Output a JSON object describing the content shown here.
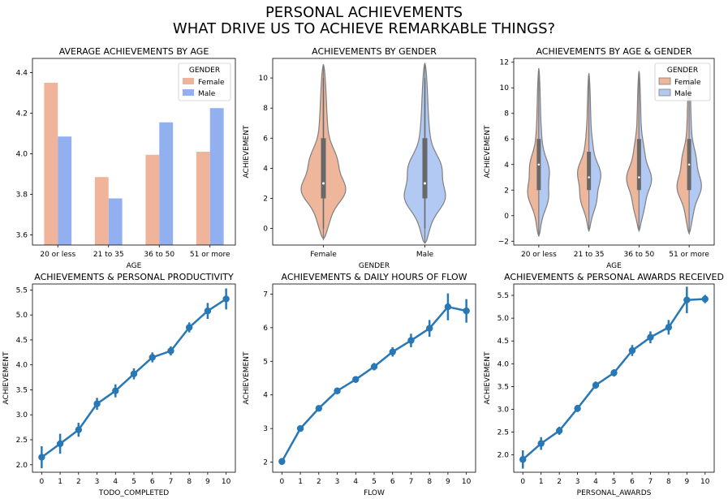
{
  "figure": {
    "title_line1": "PERSONAL ACHIEVEMENTS",
    "title_line2": "WHAT DRIVE US TO ACHIEVE REMARKABLE THINGS?"
  },
  "colors": {
    "female": "#f0b49a",
    "male": "#92b0f0",
    "female_violin": "#eeb79c",
    "male_violin": "#b2c9f4",
    "line": "#2878b5",
    "violin_edge": "#7f7f7f",
    "box": "#686868"
  },
  "chart_data": [
    {
      "type": "bar",
      "title": "AVERAGE ACHIEVEMENTS BY AGE",
      "xlabel": "AGE",
      "ylabel": "",
      "categories": [
        "20 or less",
        "21 to 35",
        "36 to 50",
        "51 or more"
      ],
      "series": [
        {
          "name": "Female",
          "values": [
            4.35,
            3.885,
            3.995,
            4.01
          ]
        },
        {
          "name": "Male",
          "values": [
            4.085,
            3.78,
            4.155,
            4.225
          ]
        }
      ],
      "ylim": [
        3.55,
        4.47
      ],
      "yticks": [
        3.6,
        3.8,
        4.0,
        4.2,
        4.4
      ],
      "ytick_labels": [
        "3.6",
        "3.8",
        "4.0",
        "4.2",
        "4.4"
      ],
      "legend": {
        "title": "GENDER",
        "placement": "top-right"
      }
    },
    {
      "type": "violin",
      "title": "ACHIEVEMENTS BY GENDER",
      "xlabel": "GENDER",
      "ylabel": "ACHIEVEMENT",
      "categories": [
        "Female",
        "Male"
      ],
      "ylim": [
        -1.1,
        11.3
      ],
      "yticks": [
        0,
        2,
        4,
        6,
        8,
        10
      ],
      "ytick_labels": [
        "0",
        "2",
        "4",
        "6",
        "8",
        "10"
      ],
      "violins": [
        {
          "name": "Female",
          "min": 0,
          "q1": 2,
          "median": 3,
          "q3": 6,
          "max": 10,
          "low": -0.7,
          "high": 10.9
        },
        {
          "name": "Male",
          "min": 0,
          "q1": 2,
          "median": 3,
          "q3": 6,
          "max": 10,
          "low": -1.0,
          "high": 11.0
        }
      ]
    },
    {
      "type": "violin",
      "title": "ACHIEVEMENTS BY AGE & GENDER",
      "xlabel": "AGE",
      "ylabel": "ACHIEVEMENT",
      "categories": [
        "20 or less",
        "21 to 35",
        "36 to 50",
        "51 or more"
      ],
      "ylim": [
        -2.3,
        12.3
      ],
      "yticks": [
        -2,
        0,
        2,
        4,
        6,
        8,
        10,
        12
      ],
      "ytick_labels": [
        "−2",
        "0",
        "2",
        "4",
        "6",
        "8",
        "10",
        "12"
      ],
      "legend": {
        "title": "GENDER",
        "placement": "top-right",
        "entries": [
          "Female",
          "Male"
        ]
      },
      "split": true,
      "boxes": [
        {
          "category": "20 or less",
          "q1": 2,
          "median": 4,
          "q3": 6,
          "low": -1.6,
          "high": 11.5
        },
        {
          "category": "21 to 35",
          "q1": 2,
          "median": 3,
          "q3": 5,
          "low": -1.2,
          "high": 11.1
        },
        {
          "category": "36 to 50",
          "q1": 2,
          "median": 3,
          "q3": 6,
          "low": -1.2,
          "high": 11.3
        },
        {
          "category": "51 or more",
          "q1": 2,
          "median": 4,
          "q3": 6,
          "low": -1.4,
          "high": 11.3
        }
      ]
    },
    {
      "type": "line",
      "title": "ACHIEVEMENTS & PERSONAL PRODUCTIVITY",
      "xlabel": "TODO_COMPLETED",
      "ylabel": "ACHIEVEMENT",
      "x": [
        0,
        1,
        2,
        3,
        4,
        5,
        6,
        7,
        8,
        9,
        10
      ],
      "values": [
        2.15,
        2.42,
        2.7,
        3.22,
        3.48,
        3.82,
        4.15,
        4.28,
        4.75,
        5.08,
        5.32
      ],
      "errors": [
        0.22,
        0.2,
        0.14,
        0.12,
        0.13,
        0.11,
        0.1,
        0.09,
        0.1,
        0.16,
        0.21
      ],
      "ylim": [
        1.85,
        5.62
      ],
      "yticks": [
        2.0,
        2.5,
        3.0,
        3.5,
        4.0,
        4.5,
        5.0,
        5.5
      ],
      "ytick_labels": [
        "2.0",
        "2.5",
        "3.0",
        "3.5",
        "4.0",
        "4.5",
        "5.0",
        "5.5"
      ]
    },
    {
      "type": "line",
      "title": "ACHIEVEMENTS & DAILY HOURS OF FLOW",
      "xlabel": "FLOW",
      "ylabel": "ACHIEVEMENT",
      "x": [
        0,
        1,
        2,
        3,
        4,
        5,
        6,
        7,
        8,
        9,
        10
      ],
      "values": [
        2.02,
        3.0,
        3.6,
        4.12,
        4.46,
        4.84,
        5.28,
        5.62,
        5.98,
        6.62,
        6.5
      ],
      "errors": [
        0.1,
        0.08,
        0.08,
        0.09,
        0.1,
        0.11,
        0.14,
        0.2,
        0.25,
        0.4,
        0.35
      ],
      "ylim": [
        1.7,
        7.3
      ],
      "yticks": [
        2,
        3,
        4,
        5,
        6,
        7
      ],
      "ytick_labels": [
        "2",
        "3",
        "4",
        "5",
        "6",
        "7"
      ]
    },
    {
      "type": "line",
      "title": "ACHIEVEMENTS & PERSONAL AWARDS RECEIVED",
      "xlabel": "PERSONAL_AWARDS",
      "ylabel": "ACHIEVEMENT",
      "x": [
        0,
        1,
        2,
        3,
        4,
        5,
        6,
        7,
        8,
        9,
        10
      ],
      "values": [
        1.9,
        2.25,
        2.53,
        3.02,
        3.53,
        3.8,
        4.29,
        4.58,
        4.8,
        5.4,
        5.42
      ],
      "errors": [
        0.2,
        0.14,
        0.09,
        0.08,
        0.08,
        0.08,
        0.12,
        0.13,
        0.16,
        0.29,
        0.09
      ],
      "ylim": [
        1.62,
        5.75
      ],
      "yticks": [
        2.0,
        2.5,
        3.0,
        3.5,
        4.0,
        4.5,
        5.0,
        5.5
      ],
      "ytick_labels": [
        "2.0",
        "2.5",
        "3.0",
        "3.5",
        "4.0",
        "4.5",
        "5.0",
        "5.5"
      ]
    }
  ]
}
